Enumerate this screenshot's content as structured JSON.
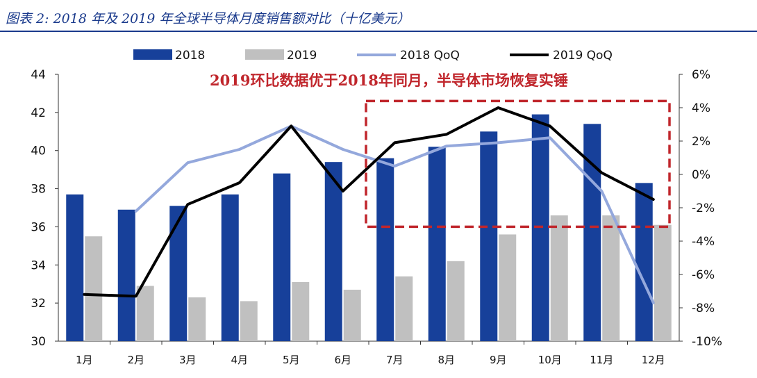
{
  "caption": "图表 2: 2018 年及 2019 年全球半导体月度销售额对比（十亿美元）",
  "colors": {
    "bar_2018": "#17409a",
    "bar_2019": "#c0c0c0",
    "line_2018_qoq": "#94a8dc",
    "line_2019_qoq": "#000000",
    "annotation": "#c0262c",
    "caption": "#1a3a8c"
  },
  "chart_data": {
    "type": "bar",
    "categories": [
      "1月",
      "2月",
      "3月",
      "4月",
      "5月",
      "6月",
      "7月",
      "8月",
      "9月",
      "10月",
      "11月",
      "12月"
    ],
    "series": [
      {
        "name": "2018",
        "type": "bar",
        "axis": "left",
        "values": [
          37.7,
          36.9,
          37.1,
          37.7,
          38.8,
          39.4,
          39.6,
          40.2,
          41.0,
          41.9,
          41.4,
          38.3
        ]
      },
      {
        "name": "2019",
        "type": "bar",
        "axis": "left",
        "values": [
          35.5,
          32.9,
          32.3,
          32.1,
          33.1,
          32.7,
          33.4,
          34.2,
          35.6,
          36.6,
          36.6,
          36.1
        ]
      },
      {
        "name": "2018 QoQ",
        "type": "line",
        "axis": "right",
        "values": [
          null,
          -2.2,
          0.7,
          1.5,
          2.9,
          1.5,
          0.5,
          1.7,
          1.9,
          2.2,
          -1.0,
          -7.7
        ]
      },
      {
        "name": "2019 QoQ",
        "type": "line",
        "axis": "right",
        "values": [
          -7.2,
          -7.3,
          -1.8,
          -0.5,
          2.9,
          -1.0,
          1.9,
          2.4,
          4.0,
          2.9,
          0.1,
          -1.5
        ]
      }
    ],
    "y_left": {
      "min": 30,
      "max": 44,
      "ticks": [
        "30",
        "32",
        "34",
        "36",
        "38",
        "40",
        "42",
        "44"
      ]
    },
    "y_right": {
      "min": -10,
      "max": 6,
      "ticks": [
        "-10%",
        "-8%",
        "-6%",
        "-4%",
        "-2%",
        "0%",
        "2%",
        "4%",
        "6%"
      ]
    },
    "annotation": "2019环比数据优于2018年同月，半导体市场恢复实锤",
    "highlight": {
      "from_category": "7月",
      "to_category": "12月",
      "y_from": 36,
      "y_to": 42.6
    },
    "legend_position": "top",
    "grid": false
  }
}
